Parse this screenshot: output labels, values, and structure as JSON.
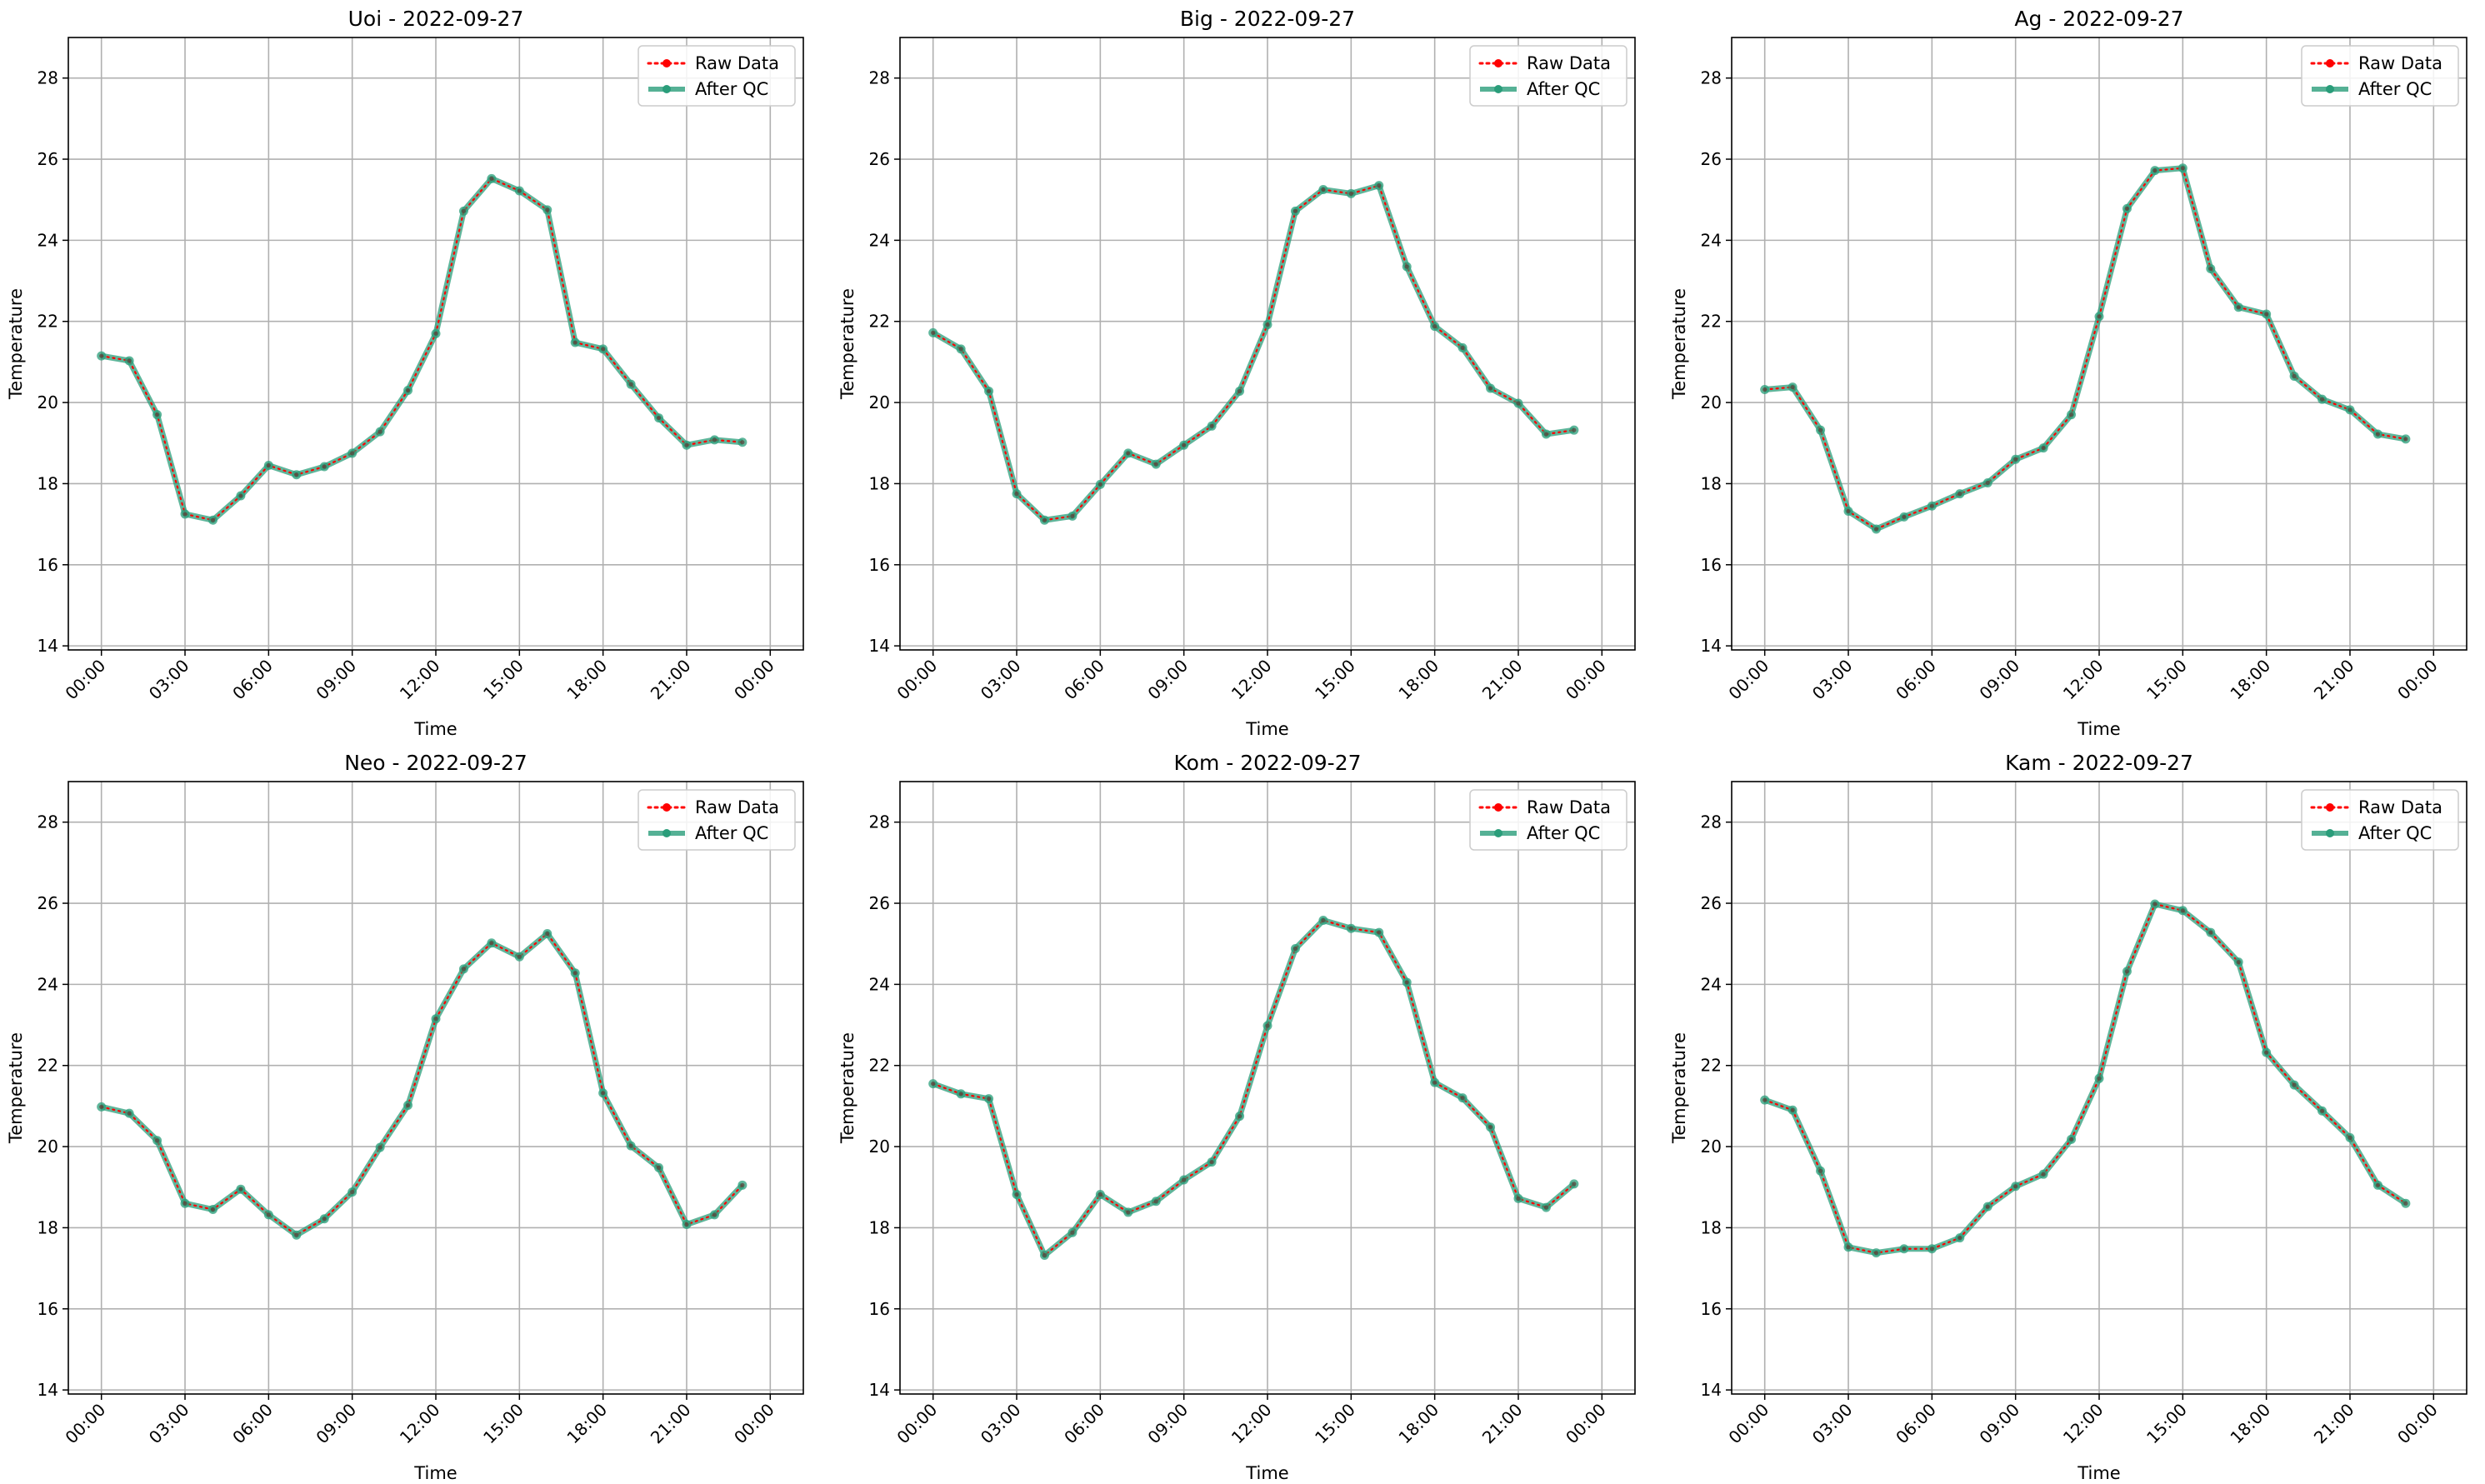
{
  "chart_data": [
    {
      "type": "line",
      "title": "Uoi - 2022-09-27",
      "xlabel": "Time",
      "ylabel": "Temperature",
      "ylim": [
        13.9,
        29
      ],
      "yticks": [
        "14",
        "16",
        "18",
        "20",
        "22",
        "24",
        "26",
        "28"
      ],
      "xticks": [
        "00:00",
        "03:00",
        "06:00",
        "09:00",
        "12:00",
        "15:00",
        "18:00",
        "21:00",
        "00:00"
      ],
      "x_hours": [
        0,
        1,
        2,
        3,
        4,
        5,
        6,
        7,
        8,
        9,
        10,
        11,
        12,
        13,
        14,
        15,
        16,
        17,
        18,
        19,
        20,
        21,
        22,
        23
      ],
      "series": [
        {
          "name": "Raw Data",
          "color": "#ff0000",
          "values": [
            21.15,
            21.03,
            19.7,
            17.25,
            17.1,
            17.7,
            18.45,
            18.22,
            18.42,
            18.75,
            19.28,
            20.3,
            21.7,
            24.72,
            25.52,
            25.22,
            24.75,
            21.48,
            21.32,
            20.45,
            19.62,
            18.95,
            19.08,
            19.02
          ]
        },
        {
          "name": "After QC",
          "color": "#2a9d7a",
          "values": [
            21.15,
            21.03,
            19.7,
            17.25,
            17.1,
            17.7,
            18.45,
            18.22,
            18.42,
            18.75,
            19.28,
            20.3,
            21.7,
            24.72,
            25.52,
            25.22,
            24.75,
            21.48,
            21.32,
            20.45,
            19.62,
            18.95,
            19.08,
            19.02
          ]
        }
      ],
      "grid": true,
      "legend": "top-right"
    },
    {
      "type": "line",
      "title": "Big - 2022-09-27",
      "xlabel": "Time",
      "ylabel": "Temperature",
      "ylim": [
        13.9,
        29
      ],
      "yticks": [
        "14",
        "16",
        "18",
        "20",
        "22",
        "24",
        "26",
        "28"
      ],
      "xticks": [
        "00:00",
        "03:00",
        "06:00",
        "09:00",
        "12:00",
        "15:00",
        "18:00",
        "21:00",
        "00:00"
      ],
      "x_hours": [
        0,
        1,
        2,
        3,
        4,
        5,
        6,
        7,
        8,
        9,
        10,
        11,
        12,
        13,
        14,
        15,
        16,
        17,
        18,
        19,
        20,
        21,
        22,
        23
      ],
      "series": [
        {
          "name": "Raw Data",
          "color": "#ff0000",
          "values": [
            21.72,
            21.32,
            20.28,
            17.75,
            17.1,
            17.2,
            17.98,
            18.75,
            18.48,
            18.95,
            19.42,
            20.28,
            21.92,
            24.72,
            25.25,
            25.15,
            25.35,
            23.35,
            21.88,
            21.35,
            20.35,
            19.98,
            19.22,
            19.32
          ]
        },
        {
          "name": "After QC",
          "color": "#2a9d7a",
          "values": [
            21.72,
            21.32,
            20.28,
            17.75,
            17.1,
            17.2,
            17.98,
            18.75,
            18.48,
            18.95,
            19.42,
            20.28,
            21.92,
            24.72,
            25.25,
            25.15,
            25.35,
            23.35,
            21.88,
            21.35,
            20.35,
            19.98,
            19.22,
            19.32
          ]
        }
      ],
      "grid": true,
      "legend": "top-right"
    },
    {
      "type": "line",
      "title": "Ag - 2022-09-27",
      "xlabel": "Time",
      "ylabel": "Temperature",
      "ylim": [
        13.9,
        29
      ],
      "yticks": [
        "14",
        "16",
        "18",
        "20",
        "22",
        "24",
        "26",
        "28"
      ],
      "xticks": [
        "00:00",
        "03:00",
        "06:00",
        "09:00",
        "12:00",
        "15:00",
        "18:00",
        "21:00",
        "00:00"
      ],
      "x_hours": [
        0,
        1,
        2,
        3,
        4,
        5,
        6,
        7,
        8,
        9,
        10,
        11,
        12,
        13,
        14,
        15,
        16,
        17,
        18,
        19,
        20,
        21,
        22,
        23
      ],
      "series": [
        {
          "name": "Raw Data",
          "color": "#ff0000",
          "values": [
            20.32,
            20.38,
            19.32,
            17.32,
            16.88,
            17.18,
            17.45,
            17.75,
            18.02,
            18.6,
            18.88,
            19.7,
            22.12,
            24.78,
            25.72,
            25.78,
            23.3,
            22.35,
            22.18,
            20.65,
            20.08,
            19.82,
            19.22,
            19.1
          ]
        },
        {
          "name": "After QC",
          "color": "#2a9d7a",
          "values": [
            20.32,
            20.38,
            19.32,
            17.32,
            16.88,
            17.18,
            17.45,
            17.75,
            18.02,
            18.6,
            18.88,
            19.7,
            22.12,
            24.78,
            25.72,
            25.78,
            23.3,
            22.35,
            22.18,
            20.65,
            20.08,
            19.82,
            19.22,
            19.1
          ]
        }
      ],
      "grid": true,
      "legend": "top-right"
    },
    {
      "type": "line",
      "title": "Neo - 2022-09-27",
      "xlabel": "Time",
      "ylabel": "Temperature",
      "ylim": [
        13.9,
        29
      ],
      "yticks": [
        "14",
        "16",
        "18",
        "20",
        "22",
        "24",
        "26",
        "28"
      ],
      "xticks": [
        "00:00",
        "03:00",
        "06:00",
        "09:00",
        "12:00",
        "15:00",
        "18:00",
        "21:00",
        "00:00"
      ],
      "x_hours": [
        0,
        1,
        2,
        3,
        4,
        5,
        6,
        7,
        8,
        9,
        10,
        11,
        12,
        13,
        14,
        15,
        16,
        17,
        18,
        19,
        20,
        21,
        22,
        23
      ],
      "series": [
        {
          "name": "Raw Data",
          "color": "#ff0000",
          "values": [
            20.98,
            20.82,
            20.15,
            18.6,
            18.45,
            18.95,
            18.32,
            17.82,
            18.22,
            18.88,
            19.98,
            21.02,
            23.15,
            24.38,
            25.02,
            24.68,
            25.25,
            24.28,
            21.32,
            20.02,
            19.48,
            18.08,
            18.32,
            19.05
          ]
        },
        {
          "name": "After QC",
          "color": "#2a9d7a",
          "values": [
            20.98,
            20.82,
            20.15,
            18.6,
            18.45,
            18.95,
            18.32,
            17.82,
            18.22,
            18.88,
            19.98,
            21.02,
            23.15,
            24.38,
            25.02,
            24.68,
            25.25,
            24.28,
            21.32,
            20.02,
            19.48,
            18.08,
            18.32,
            19.05
          ]
        }
      ],
      "grid": true,
      "legend": "top-right"
    },
    {
      "type": "line",
      "title": "Kom - 2022-09-27",
      "xlabel": "Time",
      "ylabel": "Temperature",
      "ylim": [
        13.9,
        29
      ],
      "yticks": [
        "14",
        "16",
        "18",
        "20",
        "22",
        "24",
        "26",
        "28"
      ],
      "xticks": [
        "00:00",
        "03:00",
        "06:00",
        "09:00",
        "12:00",
        "15:00",
        "18:00",
        "21:00",
        "00:00"
      ],
      "x_hours": [
        0,
        1,
        2,
        3,
        4,
        5,
        6,
        7,
        8,
        9,
        10,
        11,
        12,
        13,
        14,
        15,
        16,
        17,
        18,
        19,
        20,
        21,
        22,
        23
      ],
      "series": [
        {
          "name": "Raw Data",
          "color": "#ff0000",
          "values": [
            21.55,
            21.3,
            21.18,
            18.82,
            17.32,
            17.88,
            18.82,
            18.38,
            18.65,
            19.18,
            19.62,
            20.75,
            22.98,
            24.88,
            25.58,
            25.38,
            25.28,
            24.05,
            21.58,
            21.2,
            20.48,
            18.72,
            18.5,
            19.08
          ]
        },
        {
          "name": "After QC",
          "color": "#2a9d7a",
          "values": [
            21.55,
            21.3,
            21.18,
            18.82,
            17.32,
            17.88,
            18.82,
            18.38,
            18.65,
            19.18,
            19.62,
            20.75,
            22.98,
            24.88,
            25.58,
            25.38,
            25.28,
            24.05,
            21.58,
            21.2,
            20.48,
            18.72,
            18.5,
            19.08
          ]
        }
      ],
      "grid": true,
      "legend": "top-right"
    },
    {
      "type": "line",
      "title": "Kam - 2022-09-27",
      "xlabel": "Time",
      "ylabel": "Temperature",
      "ylim": [
        13.9,
        29
      ],
      "yticks": [
        "14",
        "16",
        "18",
        "20",
        "22",
        "24",
        "26",
        "28"
      ],
      "xticks": [
        "00:00",
        "03:00",
        "06:00",
        "09:00",
        "12:00",
        "15:00",
        "18:00",
        "21:00",
        "00:00"
      ],
      "x_hours": [
        0,
        1,
        2,
        3,
        4,
        5,
        6,
        7,
        8,
        9,
        10,
        11,
        12,
        13,
        14,
        15,
        16,
        17,
        18,
        19,
        20,
        21,
        22,
        23
      ],
      "series": [
        {
          "name": "Raw Data",
          "color": "#ff0000",
          "values": [
            21.15,
            20.9,
            19.4,
            17.52,
            17.38,
            17.48,
            17.48,
            17.75,
            18.52,
            19.02,
            19.32,
            20.18,
            21.68,
            24.32,
            25.98,
            25.82,
            25.28,
            24.55,
            22.32,
            21.52,
            20.88,
            20.22,
            19.05,
            18.6
          ]
        },
        {
          "name": "After QC",
          "color": "#2a9d7a",
          "values": [
            21.15,
            20.9,
            19.4,
            17.52,
            17.38,
            17.48,
            17.48,
            17.75,
            18.52,
            19.02,
            19.32,
            20.18,
            21.68,
            24.32,
            25.98,
            25.82,
            25.28,
            24.55,
            22.32,
            21.52,
            20.88,
            20.22,
            19.05,
            18.6
          ]
        }
      ],
      "grid": true,
      "legend": "top-right"
    }
  ]
}
